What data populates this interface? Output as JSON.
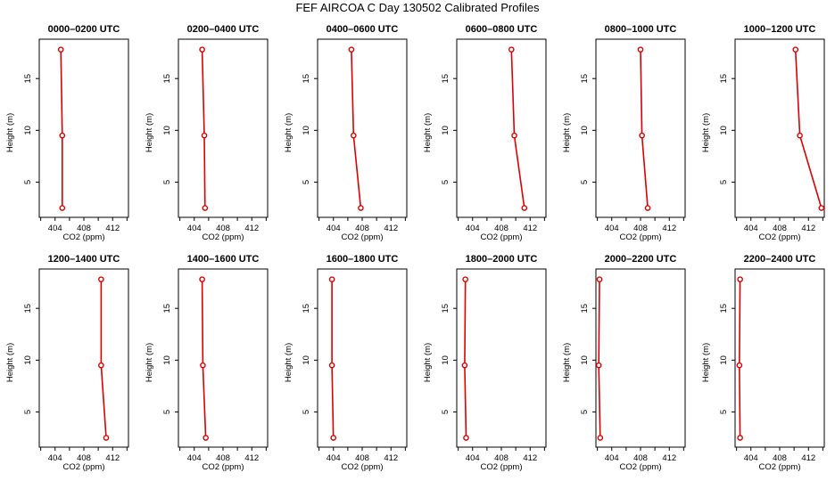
{
  "figure_title": "FEF AIRCOA C  Day 130502  Calibrated Profiles",
  "colors": {
    "line": "#dd0000",
    "marker": "#dd0000",
    "axes": "#000000",
    "background": "#ffffff"
  },
  "chart_data": [
    {
      "type": "line",
      "title": "0000–0200 UTC",
      "xlabel": "CO2 (ppm)",
      "ylabel": "Height (m)",
      "xlim": [
        401.8,
        414.2
      ],
      "ylim": [
        1.6,
        18.8
      ],
      "xticks": [
        404,
        408,
        412
      ],
      "yticks": [
        5,
        10,
        15
      ],
      "x": [
        404.8,
        405.0,
        405.0
      ],
      "y": [
        17.8,
        9.5,
        2.5
      ]
    },
    {
      "type": "line",
      "title": "0200–0400 UTC",
      "xlabel": "CO2 (ppm)",
      "ylabel": "Height (m)",
      "xlim": [
        401.8,
        414.2
      ],
      "ylim": [
        1.6,
        18.8
      ],
      "xticks": [
        404,
        408,
        412
      ],
      "yticks": [
        5,
        10,
        15
      ],
      "x": [
        405.1,
        405.4,
        405.5
      ],
      "y": [
        17.8,
        9.5,
        2.5
      ]
    },
    {
      "type": "line",
      "title": "0400–0600 UTC",
      "xlabel": "CO2 (ppm)",
      "ylabel": "Height (m)",
      "xlim": [
        401.8,
        414.2
      ],
      "ylim": [
        1.6,
        18.8
      ],
      "xticks": [
        404,
        408,
        412
      ],
      "yticks": [
        5,
        10,
        15
      ],
      "x": [
        406.5,
        406.8,
        407.8
      ],
      "y": [
        17.8,
        9.5,
        2.5
      ]
    },
    {
      "type": "line",
      "title": "0600–0800 UTC",
      "xlabel": "CO2 (ppm)",
      "ylabel": "Height (m)",
      "xlim": [
        401.8,
        414.2
      ],
      "ylim": [
        1.6,
        18.8
      ],
      "xticks": [
        404,
        408,
        412
      ],
      "yticks": [
        5,
        10,
        15
      ],
      "x": [
        409.4,
        409.8,
        411.2
      ],
      "y": [
        17.8,
        9.5,
        2.5
      ]
    },
    {
      "type": "line",
      "title": "0800–1000 UTC",
      "xlabel": "CO2 (ppm)",
      "ylabel": "Height (m)",
      "xlim": [
        401.8,
        414.2
      ],
      "ylim": [
        1.6,
        18.8
      ],
      "xticks": [
        404,
        408,
        412
      ],
      "yticks": [
        5,
        10,
        15
      ],
      "x": [
        408.0,
        408.2,
        409.0
      ],
      "y": [
        17.8,
        9.5,
        2.5
      ]
    },
    {
      "type": "line",
      "title": "1000–1200 UTC",
      "xlabel": "CO2 (ppm)",
      "ylabel": "Height (m)",
      "xlim": [
        401.8,
        414.2
      ],
      "ylim": [
        1.6,
        18.8
      ],
      "xticks": [
        404,
        408,
        412
      ],
      "yticks": [
        5,
        10,
        15
      ],
      "x": [
        410.2,
        410.8,
        413.8
      ],
      "y": [
        17.8,
        9.5,
        2.5
      ]
    },
    {
      "type": "line",
      "title": "1200–1400 UTC",
      "xlabel": "CO2 (ppm)",
      "ylabel": "Height (m)",
      "xlim": [
        401.8,
        414.2
      ],
      "ylim": [
        1.6,
        18.8
      ],
      "xticks": [
        404,
        408,
        412
      ],
      "yticks": [
        5,
        10,
        15
      ],
      "x": [
        410.4,
        410.4,
        411.1
      ],
      "y": [
        17.8,
        9.5,
        2.5
      ]
    },
    {
      "type": "line",
      "title": "1400–1600 UTC",
      "xlabel": "CO2 (ppm)",
      "ylabel": "Height (m)",
      "xlim": [
        401.8,
        414.2
      ],
      "ylim": [
        1.6,
        18.8
      ],
      "xticks": [
        404,
        408,
        412
      ],
      "yticks": [
        5,
        10,
        15
      ],
      "x": [
        405.1,
        405.2,
        405.6
      ],
      "y": [
        17.8,
        9.5,
        2.5
      ]
    },
    {
      "type": "line",
      "title": "1600–1800 UTC",
      "xlabel": "CO2 (ppm)",
      "ylabel": "Height (m)",
      "xlim": [
        401.8,
        414.2
      ],
      "ylim": [
        1.6,
        18.8
      ],
      "xticks": [
        404,
        408,
        412
      ],
      "yticks": [
        5,
        10,
        15
      ],
      "x": [
        403.8,
        403.8,
        404.0
      ],
      "y": [
        17.8,
        9.5,
        2.5
      ]
    },
    {
      "type": "line",
      "title": "1800–2000 UTC",
      "xlabel": "CO2 (ppm)",
      "ylabel": "Height (m)",
      "xlim": [
        401.8,
        414.2
      ],
      "ylim": [
        1.6,
        18.8
      ],
      "xticks": [
        404,
        408,
        412
      ],
      "yticks": [
        5,
        10,
        15
      ],
      "x": [
        403.0,
        402.9,
        403.1
      ],
      "y": [
        17.8,
        9.5,
        2.5
      ]
    },
    {
      "type": "line",
      "title": "2000–2200 UTC",
      "xlabel": "CO2 (ppm)",
      "ylabel": "Height (m)",
      "xlim": [
        401.8,
        414.2
      ],
      "ylim": [
        1.6,
        18.8
      ],
      "xticks": [
        404,
        408,
        412
      ],
      "yticks": [
        5,
        10,
        15
      ],
      "x": [
        402.3,
        402.2,
        402.4
      ],
      "y": [
        17.8,
        9.5,
        2.5
      ]
    },
    {
      "type": "line",
      "title": "2200–2400 UTC",
      "xlabel": "CO2 (ppm)",
      "ylabel": "Height (m)",
      "xlim": [
        401.8,
        414.2
      ],
      "ylim": [
        1.6,
        18.8
      ],
      "xticks": [
        404,
        408,
        412
      ],
      "yticks": [
        5,
        10,
        15
      ],
      "x": [
        402.5,
        402.4,
        402.5
      ],
      "y": [
        17.8,
        9.5,
        2.5
      ]
    }
  ]
}
